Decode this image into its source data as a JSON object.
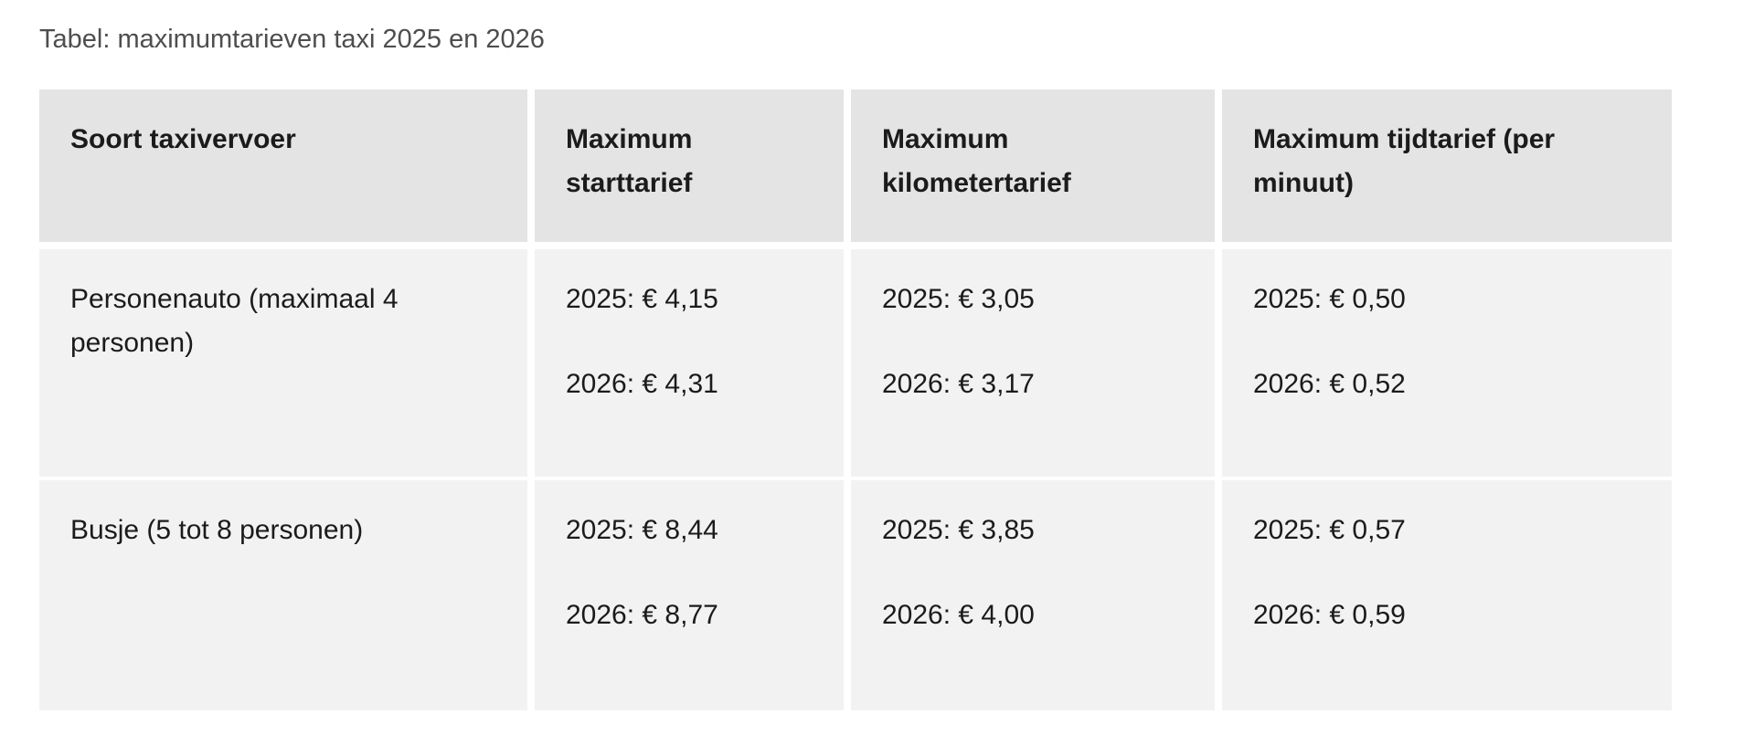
{
  "caption": "Tabel: maximumtarieven taxi 2025 en 2026",
  "colors": {
    "header_bg": "#e4e4e4",
    "row_bg": "#f2f2f2",
    "text": "#1b1b1b",
    "caption_text": "#4e4e4e",
    "page_bg": "#ffffff"
  },
  "table": {
    "columns": [
      "Soort taxivervoer",
      "Maximum starttarief",
      "Maximum kilometertarief",
      "Maximum tijdtarief (per minuut)"
    ],
    "rows": [
      {
        "soort": "Personenauto (maximaal 4 personen)",
        "starttarief": [
          "2025: € 4,15",
          "2026: € 4,31"
        ],
        "kilometertarief": [
          "2025: € 3,05",
          "2026: € 3,17"
        ],
        "tijdtarief": [
          "2025: € 0,50",
          "2026: € 0,52"
        ]
      },
      {
        "soort": "Busje (5 tot 8 personen)",
        "starttarief": [
          "2025: € 8,44",
          "2026: € 8,77"
        ],
        "kilometertarief": [
          "2025: € 3,85",
          "2026: € 4,00"
        ],
        "tijdtarief": [
          "2025: € 0,57",
          "2026: € 0,59"
        ]
      }
    ]
  },
  "chart_data": {
    "type": "table",
    "title": "Tabel: maximumtarieven taxi 2025 en 2026",
    "columns": [
      "Soort taxivervoer",
      "Maximum starttarief",
      "Maximum kilometertarief",
      "Maximum tijdtarief (per minuut)"
    ],
    "rows": [
      {
        "soort": "Personenauto (maximaal 4 personen)",
        "starttarief_eur": {
          "2025": 4.15,
          "2026": 4.31
        },
        "kilometertarief_eur": {
          "2025": 3.05,
          "2026": 3.17
        },
        "tijdtarief_per_minuut_eur": {
          "2025": 0.5,
          "2026": 0.52
        }
      },
      {
        "soort": "Busje (5 tot 8 personen)",
        "starttarief_eur": {
          "2025": 8.44,
          "2026": 8.77
        },
        "kilometertarief_eur": {
          "2025": 3.85,
          "2026": 4.0
        },
        "tijdtarief_per_minuut_eur": {
          "2025": 0.57,
          "2026": 0.59
        }
      }
    ]
  }
}
